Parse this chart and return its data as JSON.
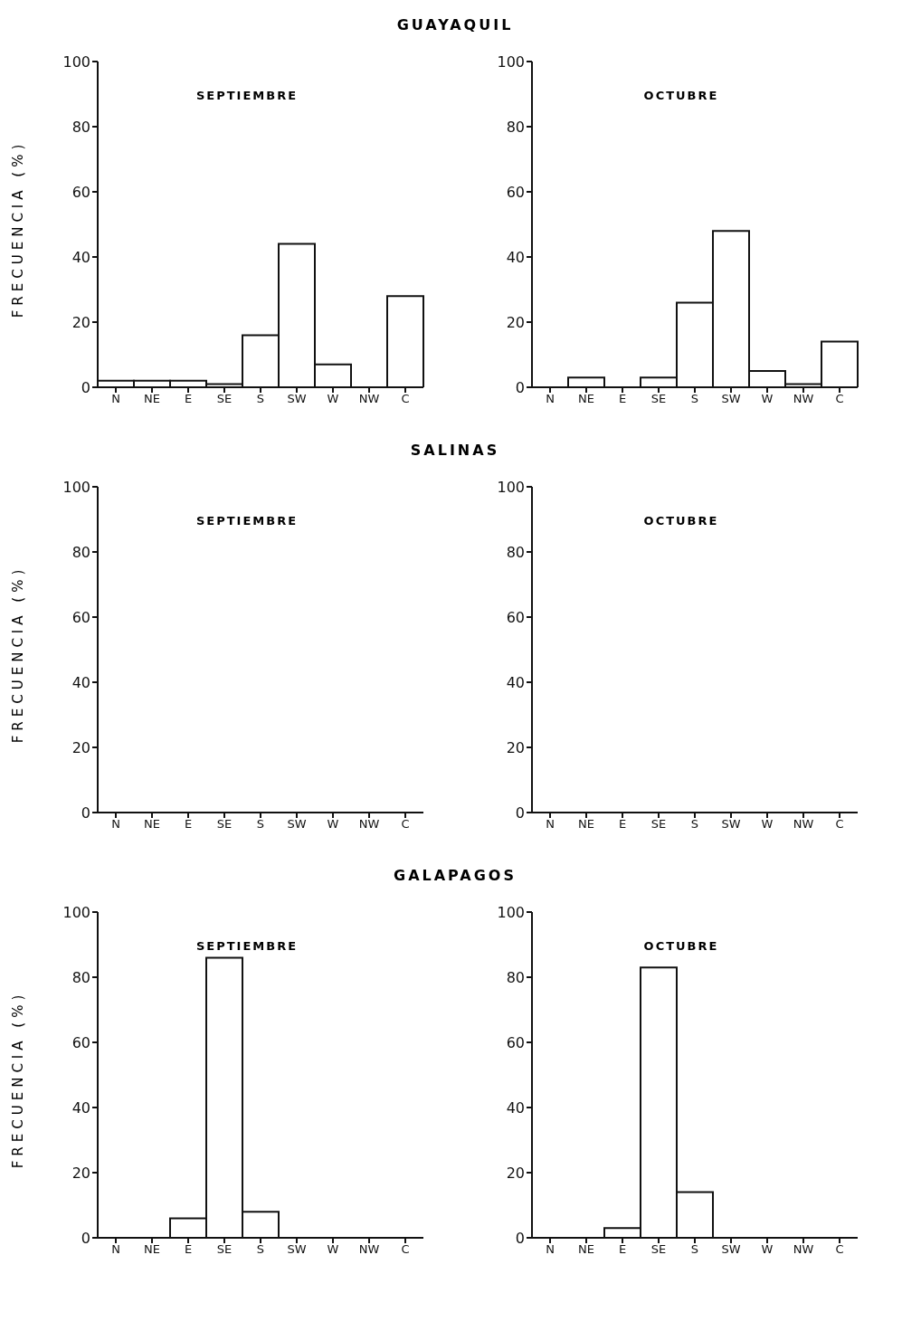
{
  "chart_data": [
    {
      "type": "bar",
      "title": "GUAYAQUIL",
      "subtitle": "SEPTIEMBRE",
      "ylabel": "FRECUENCIA (%)",
      "categories": [
        "N",
        "NE",
        "E",
        "SE",
        "S",
        "SW",
        "W",
        "NW",
        "C"
      ],
      "values": [
        2,
        2,
        2,
        1,
        16,
        44,
        7,
        0,
        28
      ],
      "color": "#ffffff",
      "ylim": [
        0,
        100
      ],
      "yticks": [
        0,
        20,
        40,
        60,
        80,
        100
      ],
      "grid": false
    },
    {
      "type": "bar",
      "subtitle": "OCTUBRE",
      "categories": [
        "N",
        "NE",
        "E",
        "SE",
        "S",
        "SW",
        "W",
        "NW",
        "C"
      ],
      "values": [
        0,
        3,
        0,
        3,
        26,
        48,
        5,
        1,
        14
      ],
      "color": "#ffffff",
      "ylim": [
        0,
        100
      ],
      "yticks": [
        0,
        20,
        40,
        60,
        80,
        100
      ],
      "grid": false
    },
    {
      "type": "bar",
      "title": "SALINAS",
      "subtitle": "SEPTIEMBRE",
      "ylabel": "FRECUENCIA (%)",
      "categories": [
        "N",
        "NE",
        "E",
        "SE",
        "S",
        "SW",
        "W",
        "NW",
        "C"
      ],
      "values": [
        null,
        null,
        null,
        null,
        null,
        null,
        null,
        null,
        null
      ],
      "color": "#ffffff",
      "ylim": [
        0,
        100
      ],
      "yticks": [
        0,
        20,
        40,
        60,
        80,
        100
      ],
      "grid": false
    },
    {
      "type": "bar",
      "subtitle": "OCTUBRE",
      "categories": [
        "N",
        "NE",
        "E",
        "SE",
        "S",
        "SW",
        "W",
        "NW",
        "C"
      ],
      "values": [
        null,
        null,
        null,
        null,
        null,
        null,
        null,
        null,
        null
      ],
      "color": "#ffffff",
      "ylim": [
        0,
        100
      ],
      "yticks": [
        0,
        20,
        40,
        60,
        80,
        100
      ],
      "grid": false
    },
    {
      "type": "bar",
      "title": "GALAPAGOS",
      "subtitle": "SEPTIEMBRE",
      "ylabel": "FRECUENCIA (%)",
      "categories": [
        "N",
        "NE",
        "E",
        "SE",
        "S",
        "SW",
        "W",
        "NW",
        "C"
      ],
      "values": [
        0,
        0,
        6,
        86,
        8,
        0,
        0,
        0,
        0
      ],
      "color": "#ffffff",
      "ylim": [
        0,
        100
      ],
      "yticks": [
        0,
        20,
        40,
        60,
        80,
        100
      ],
      "grid": false
    },
    {
      "type": "bar",
      "subtitle": "OCTUBRE",
      "categories": [
        "N",
        "NE",
        "E",
        "SE",
        "S",
        "SW",
        "W",
        "NW",
        "C"
      ],
      "values": [
        0,
        0,
        3,
        83,
        14,
        0,
        0,
        0,
        0
      ],
      "color": "#ffffff",
      "ylim": [
        0,
        100
      ],
      "yticks": [
        0,
        20,
        40,
        60,
        80,
        100
      ],
      "grid": false
    }
  ]
}
